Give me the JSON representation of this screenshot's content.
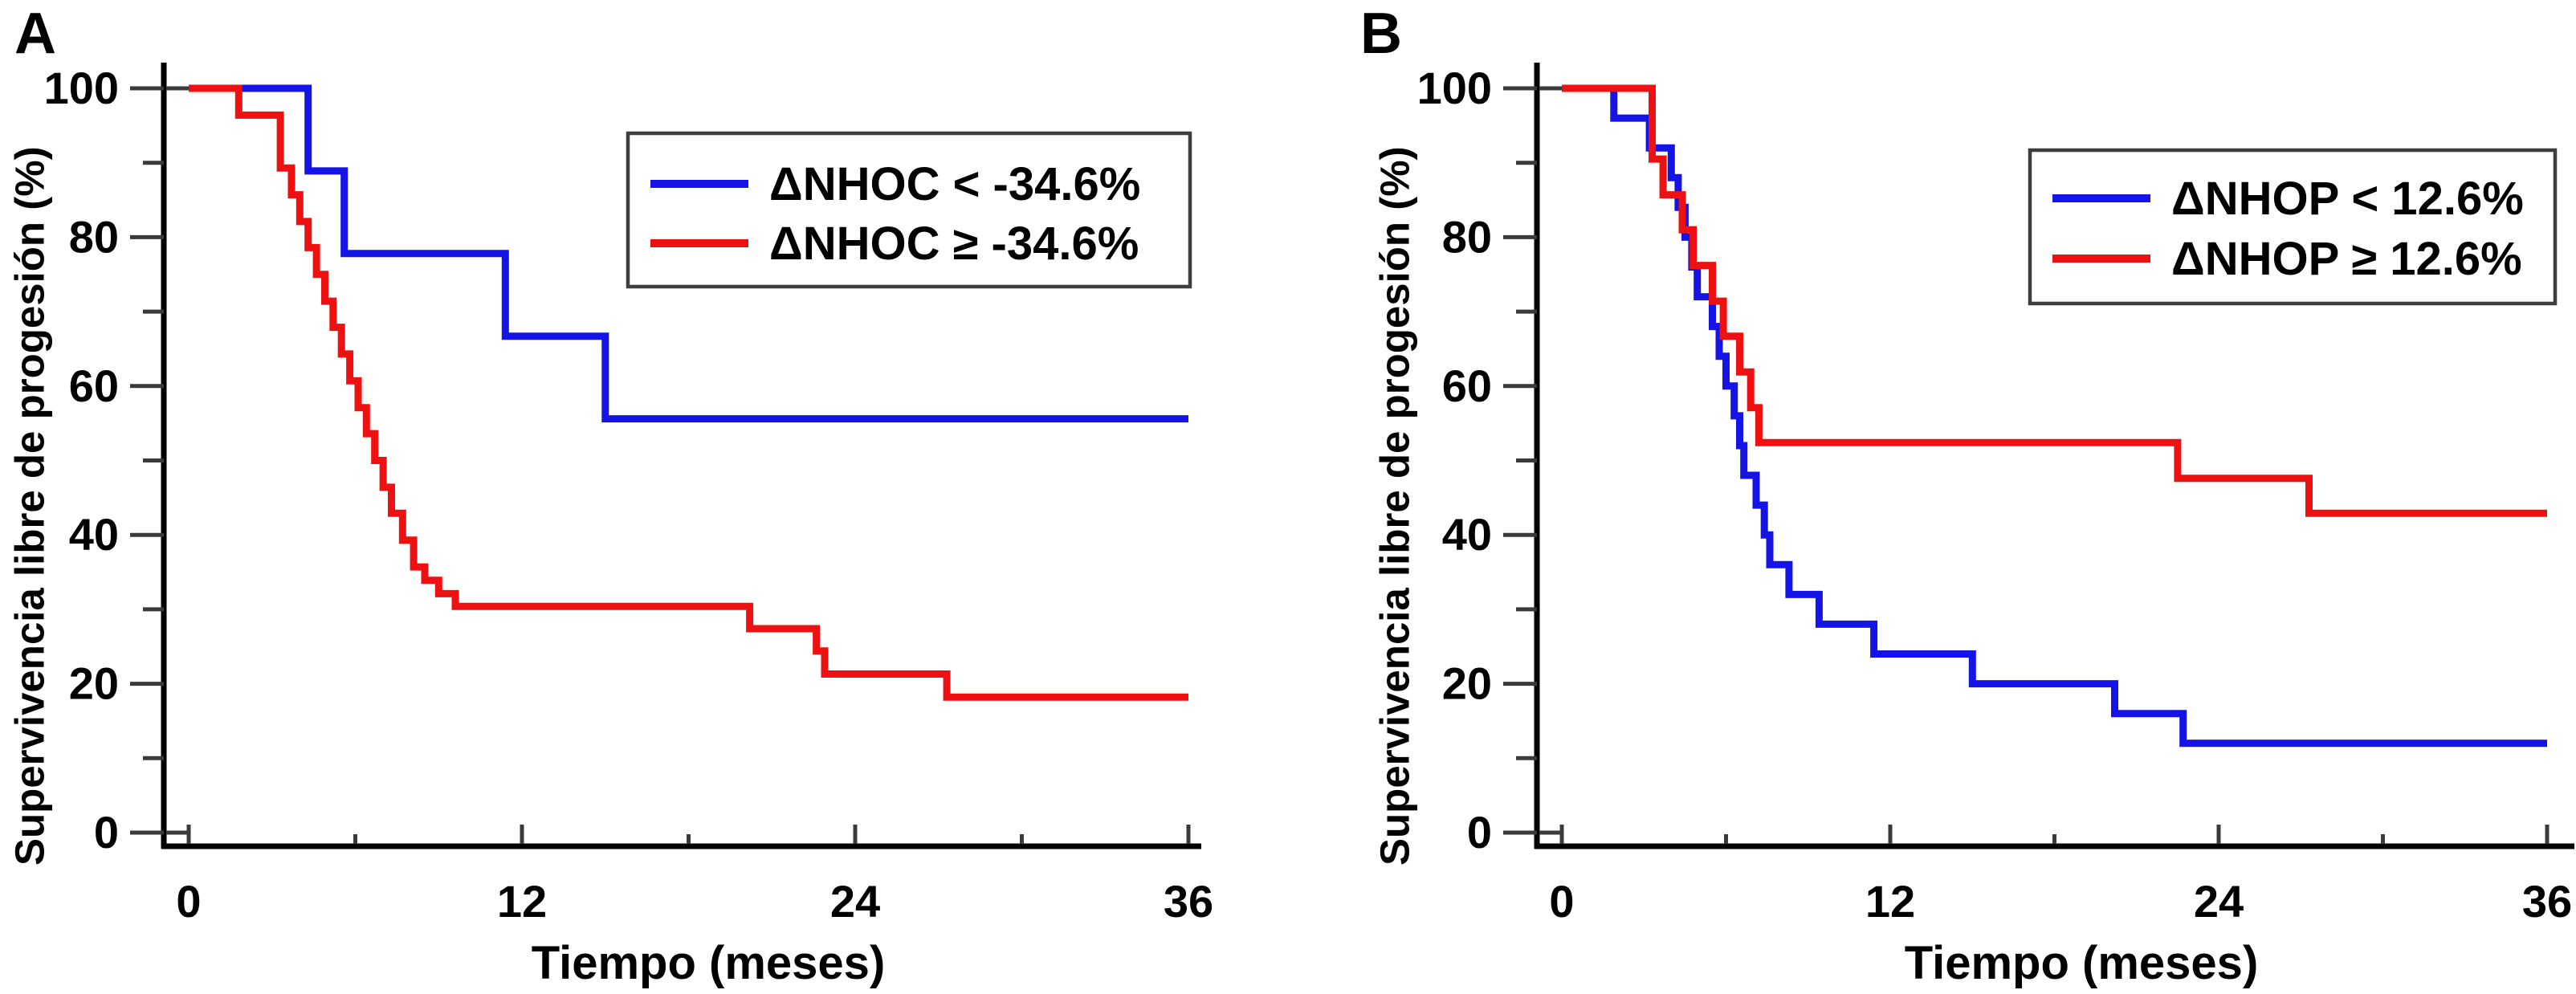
{
  "chart_data": [
    {
      "type": "line",
      "subtype": "kaplan-meier-step",
      "panel_label": "A",
      "xlabel": "Tiempo (meses)",
      "ylabel": "Supervivencia libre de progesión (%)",
      "xlim": [
        0,
        36
      ],
      "ylim": [
        0,
        100
      ],
      "x_ticks": [
        0,
        12,
        24,
        36
      ],
      "x_minor_ticks": [
        6,
        18,
        30
      ],
      "y_ticks": [
        0,
        20,
        40,
        60,
        80,
        100
      ],
      "y_minor_ticks": [
        10,
        30,
        50,
        70,
        90
      ],
      "grid": false,
      "legend_position": "upper right",
      "series": [
        {
          "name": "ΔNHOC < -34.6%",
          "color": "#1414e6",
          "drops": [
            [
              0,
              100
            ],
            [
              4.3,
              88.9
            ],
            [
              5.6,
              77.8
            ],
            [
              11.4,
              66.7
            ],
            [
              15.0,
              55.6
            ]
          ],
          "end_x": 36,
          "final_value": 55.6
        },
        {
          "name": "ΔNHOC ≥ -34.6%",
          "color": "#ee1111",
          "drops": [
            [
              0,
              100
            ],
            [
              1.8,
              96.4
            ],
            [
              3.3,
              89.3
            ],
            [
              3.7,
              85.7
            ],
            [
              4.0,
              82.1
            ],
            [
              4.3,
              78.6
            ],
            [
              4.6,
              75.0
            ],
            [
              4.9,
              71.4
            ],
            [
              5.2,
              67.9
            ],
            [
              5.5,
              64.3
            ],
            [
              5.8,
              60.7
            ],
            [
              6.1,
              57.1
            ],
            [
              6.4,
              53.6
            ],
            [
              6.7,
              50.0
            ],
            [
              7.0,
              46.4
            ],
            [
              7.3,
              42.9
            ],
            [
              7.7,
              39.3
            ],
            [
              8.1,
              35.7
            ],
            [
              8.5,
              33.9
            ],
            [
              9.0,
              32.1
            ],
            [
              9.6,
              30.4
            ],
            [
              20.2,
              27.4
            ],
            [
              22.6,
              24.4
            ],
            [
              22.9,
              21.3
            ],
            [
              27.3,
              18.2
            ]
          ],
          "end_x": 36,
          "final_value": 18.2
        }
      ]
    },
    {
      "type": "line",
      "subtype": "kaplan-meier-step",
      "panel_label": "B",
      "xlabel": "Tiempo (meses)",
      "ylabel": "Supervivencia libre de progesión (%)",
      "xlim": [
        0,
        36
      ],
      "ylim": [
        0,
        100
      ],
      "x_ticks": [
        0,
        12,
        24,
        36
      ],
      "x_minor_ticks": [
        6,
        18,
        30
      ],
      "y_ticks": [
        0,
        20,
        40,
        60,
        80,
        100
      ],
      "y_minor_ticks": [
        10,
        30,
        50,
        70,
        90
      ],
      "grid": false,
      "legend_position": "upper right",
      "series": [
        {
          "name": "ΔNHOP < 12.6%",
          "color": "#1414e6",
          "drops": [
            [
              0,
              100
            ],
            [
              1.9,
              96
            ],
            [
              3.2,
              92
            ],
            [
              4.0,
              88
            ],
            [
              4.25,
              84
            ],
            [
              4.5,
              80
            ],
            [
              4.75,
              76
            ],
            [
              4.95,
              72
            ],
            [
              5.5,
              68
            ],
            [
              5.75,
              64
            ],
            [
              6.0,
              60
            ],
            [
              6.3,
              56
            ],
            [
              6.5,
              52
            ],
            [
              6.65,
              48
            ],
            [
              7.1,
              44
            ],
            [
              7.4,
              40
            ],
            [
              7.6,
              36
            ],
            [
              8.3,
              32
            ],
            [
              9.4,
              28
            ],
            [
              11.4,
              24
            ],
            [
              15.0,
              20
            ],
            [
              20.2,
              16
            ],
            [
              22.7,
              12
            ]
          ],
          "end_x": 36,
          "final_value": 12
        },
        {
          "name": "ΔNHOP ≥ 12.6%",
          "color": "#ee1111",
          "drops": [
            [
              0,
              100
            ],
            [
              3.3,
              90.5
            ],
            [
              3.7,
              85.7
            ],
            [
              4.4,
              81.0
            ],
            [
              4.8,
              76.2
            ],
            [
              5.5,
              71.4
            ],
            [
              5.9,
              66.7
            ],
            [
              6.5,
              61.9
            ],
            [
              6.9,
              57.1
            ],
            [
              7.2,
              52.4
            ],
            [
              22.5,
              47.6
            ],
            [
              27.3,
              42.9
            ]
          ],
          "end_x": 36,
          "final_value": 42.9
        }
      ]
    }
  ],
  "style": {
    "curve_blue": "#1414e6",
    "curve_red": "#ee1111",
    "axis_color": "#000000",
    "tick_color": "#3a3a3a",
    "legend_border_color": "#3d3d3d",
    "background": "#ffffff"
  }
}
